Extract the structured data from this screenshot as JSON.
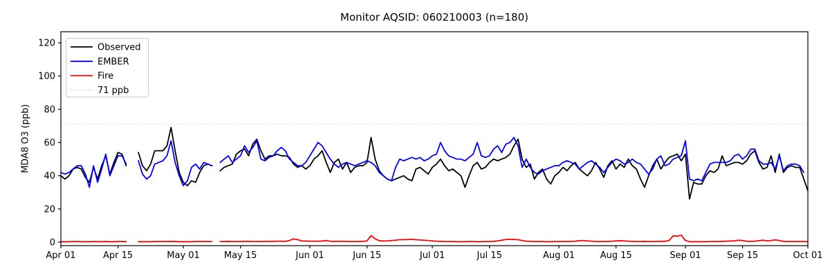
{
  "figure": {
    "background": "#ffffff",
    "title": "Monitor AQSID: 060210003 (n=180)"
  },
  "chart_data": {
    "type": "line",
    "title": "Monitor AQSID: 060210003 (n=180)",
    "xlabel": "",
    "ylabel": "MDA8 O3 (ppb)",
    "yticks": [
      0,
      20,
      40,
      60,
      80,
      100,
      120
    ],
    "ylim": [
      -2,
      126.5
    ],
    "grid": false,
    "legend_position": "upper left",
    "x_unit": "days since Apr 01, one point per day",
    "xtick_labels": [
      "Apr 01",
      "Apr 15",
      "May 01",
      "May 15",
      "Jun 01",
      "Jun 15",
      "Jul 01",
      "Jul 15",
      "Aug 01",
      "Aug 15",
      "Sep 01",
      "Sep 15",
      "Oct 01"
    ],
    "xtick_days": [
      0,
      14,
      30,
      44,
      61,
      75,
      91,
      105,
      122,
      136,
      153,
      167,
      183
    ],
    "threshold": {
      "label": "71 ppb",
      "value": 71,
      "color": "#d3d3d3",
      "style": "dotted"
    },
    "series": [
      {
        "name": "Observed",
        "color": "#000000",
        "values": [
          40,
          38,
          40,
          44,
          45,
          44,
          39,
          36,
          45,
          38,
          46,
          52,
          41,
          48,
          54,
          53,
          46,
          null,
          null,
          54,
          46,
          43,
          47,
          55,
          55,
          55,
          58,
          69,
          55,
          42,
          36,
          34,
          37,
          36,
          42,
          46,
          47,
          46,
          null,
          43,
          45,
          46,
          47,
          53,
          55,
          56,
          52,
          59,
          62,
          55,
          50,
          52,
          52,
          53,
          52,
          52,
          51,
          47,
          45,
          46,
          44,
          46,
          50,
          52,
          55,
          48,
          42,
          48,
          50,
          44,
          48,
          42,
          45,
          46,
          46,
          48,
          63,
          50,
          43,
          40,
          38,
          37,
          38,
          39,
          40,
          38,
          37,
          44,
          45,
          43,
          41,
          45,
          47,
          50,
          46,
          43,
          44,
          42,
          40,
          33,
          40,
          46,
          48,
          44,
          45,
          48,
          50,
          49,
          50,
          51,
          53,
          58,
          62,
          50,
          45,
          47,
          38,
          42,
          44,
          38,
          35,
          40,
          42,
          45,
          43,
          46,
          48,
          44,
          42,
          40,
          43,
          48,
          44,
          39,
          46,
          49,
          44,
          47,
          45,
          50,
          46,
          44,
          38,
          33,
          40,
          46,
          50,
          44,
          48,
          51,
          52,
          53,
          49,
          53,
          26,
          36,
          35,
          35,
          40,
          43,
          42,
          44,
          52,
          46,
          47,
          48,
          48,
          47,
          49,
          53,
          55,
          48,
          44,
          45,
          52,
          42,
          53,
          42,
          45,
          46,
          45,
          45,
          38,
          31
        ]
      },
      {
        "name": "EMBER",
        "color": "#0000ff",
        "values": [
          42,
          41,
          42,
          44,
          46,
          46,
          41,
          33,
          46,
          36,
          44,
          53,
          40,
          46,
          52,
          52,
          47,
          null,
          null,
          49,
          41,
          38,
          40,
          47,
          48,
          49,
          52,
          61,
          48,
          40,
          34,
          37,
          45,
          47,
          44,
          48,
          47,
          46,
          null,
          48,
          50,
          52,
          48,
          50,
          52,
          58,
          54,
          57,
          61,
          50,
          49,
          51,
          52,
          55,
          57,
          55,
          50,
          48,
          46,
          46,
          48,
          52,
          56,
          60,
          58,
          54,
          50,
          47,
          45,
          47,
          48,
          47,
          46,
          47,
          48,
          49,
          48,
          46,
          42,
          40,
          38,
          37,
          45,
          50,
          49,
          50,
          51,
          50,
          51,
          49,
          50,
          52,
          53,
          60,
          55,
          52,
          51,
          50,
          50,
          49,
          51,
          53,
          60,
          52,
          51,
          52,
          56,
          58,
          54,
          59,
          60,
          63,
          58,
          45,
          50,
          45,
          42,
          41,
          43,
          44,
          45,
          46,
          46,
          48,
          49,
          48,
          47,
          44,
          46,
          48,
          49,
          47,
          45,
          42,
          45,
          48,
          50,
          49,
          47,
          48,
          50,
          48,
          47,
          44,
          41,
          44,
          50,
          52,
          46,
          47,
          50,
          51,
          52,
          61,
          38,
          37,
          38,
          37,
          42,
          47,
          48,
          48,
          48,
          48,
          49,
          52,
          53,
          50,
          52,
          56,
          56,
          49,
          47,
          47,
          48,
          44,
          52,
          43,
          46,
          47,
          47,
          46,
          42,
          null
        ]
      },
      {
        "name": "Fire",
        "color": "#ff0000",
        "values": [
          0.3,
          0.3,
          0.3,
          0.4,
          0.4,
          0.3,
          0.3,
          0.3,
          0.4,
          0.3,
          0.3,
          0.4,
          0.3,
          0.3,
          0.4,
          0.4,
          0.3,
          null,
          null,
          0.3,
          0.3,
          0.3,
          0.3,
          0.4,
          0.4,
          0.4,
          0.4,
          0.5,
          0.4,
          0.3,
          0.3,
          0.3,
          0.3,
          0.4,
          0.4,
          0.4,
          0.4,
          0.4,
          null,
          0.4,
          0.4,
          0.5,
          0.4,
          0.4,
          0.4,
          0.5,
          0.5,
          0.4,
          0.4,
          0.4,
          0.5,
          0.5,
          0.5,
          0.6,
          0.6,
          0.5,
          1.0,
          2.0,
          1.5,
          0.8,
          0.7,
          0.6,
          0.6,
          0.6,
          0.7,
          1.0,
          0.6,
          0.5,
          0.5,
          0.5,
          0.5,
          0.4,
          0.4,
          0.4,
          0.5,
          0.8,
          4.0,
          2.0,
          0.9,
          0.7,
          0.8,
          1.0,
          1.2,
          1.5,
          1.5,
          1.6,
          1.8,
          1.5,
          1.3,
          1.2,
          1.0,
          0.8,
          0.6,
          0.5,
          0.4,
          0.4,
          0.4,
          0.3,
          0.3,
          0.3,
          0.4,
          0.4,
          0.3,
          0.3,
          0.4,
          0.4,
          0.5,
          0.8,
          1.2,
          1.6,
          1.8,
          1.6,
          1.5,
          1.0,
          0.6,
          0.5,
          0.4,
          0.4,
          0.4,
          0.3,
          0.3,
          0.4,
          0.4,
          0.4,
          0.4,
          0.5,
          0.6,
          0.9,
          1.0,
          0.8,
          0.6,
          0.4,
          0.4,
          0.4,
          0.4,
          0.6,
          0.8,
          0.9,
          0.8,
          0.6,
          0.5,
          0.4,
          0.4,
          0.5,
          0.4,
          0.4,
          0.5,
          0.5,
          0.5,
          1.0,
          3.8,
          3.6,
          4.2,
          1.0,
          0.3,
          0.3,
          0.3,
          0.3,
          0.3,
          0.4,
          0.4,
          0.4,
          0.5,
          0.6,
          0.7,
          0.8,
          1.2,
          1.0,
          0.6,
          0.5,
          0.6,
          0.9,
          1.2,
          0.8,
          1.0,
          1.4,
          1.0,
          0.5,
          0.4,
          0.4,
          0.4,
          0.4,
          0.4,
          0.3
        ]
      }
    ]
  }
}
